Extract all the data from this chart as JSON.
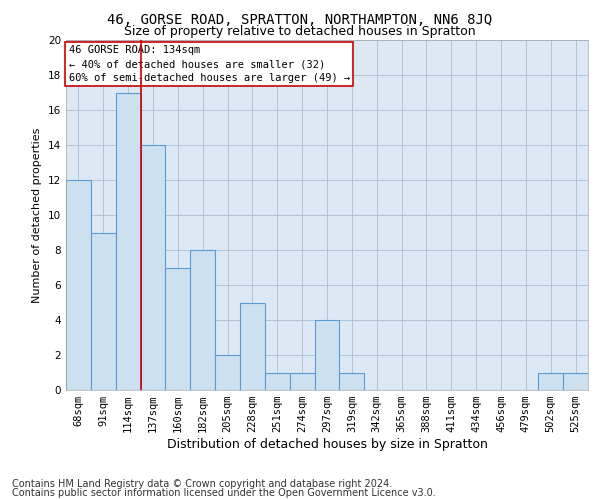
{
  "title1": "46, GORSE ROAD, SPRATTON, NORTHAMPTON, NN6 8JQ",
  "title2": "Size of property relative to detached houses in Spratton",
  "xlabel": "Distribution of detached houses by size in Spratton",
  "ylabel": "Number of detached properties",
  "footer1": "Contains HM Land Registry data © Crown copyright and database right 2024.",
  "footer2": "Contains public sector information licensed under the Open Government Licence v3.0.",
  "annotation_line1": "46 GORSE ROAD: 134sqm",
  "annotation_line2": "← 40% of detached houses are smaller (32)",
  "annotation_line3": "60% of semi-detached houses are larger (49) →",
  "categories": [
    "68sqm",
    "91sqm",
    "114sqm",
    "137sqm",
    "160sqm",
    "182sqm",
    "205sqm",
    "228sqm",
    "251sqm",
    "274sqm",
    "297sqm",
    "319sqm",
    "342sqm",
    "365sqm",
    "388sqm",
    "411sqm",
    "434sqm",
    "456sqm",
    "479sqm",
    "502sqm",
    "525sqm"
  ],
  "values": [
    12,
    9,
    17,
    14,
    7,
    8,
    2,
    5,
    1,
    1,
    4,
    1,
    0,
    0,
    0,
    0,
    0,
    0,
    0,
    1,
    1
  ],
  "bar_color": "#cce0f0",
  "bar_edge_color": "#5b9bd5",
  "grid_color": "#b0c4d8",
  "background_color": "#dce9f5",
  "vline_x_index": 2.5,
  "vline_color": "#cc0000",
  "ylim": [
    0,
    20
  ],
  "yticks": [
    0,
    2,
    4,
    6,
    8,
    10,
    12,
    14,
    16,
    18,
    20
  ],
  "annotation_box_color": "#ffffff",
  "annotation_box_edge": "#cc0000",
  "title1_fontsize": 10,
  "title2_fontsize": 9,
  "xlabel_fontsize": 9,
  "ylabel_fontsize": 8,
  "tick_fontsize": 7.5,
  "annotation_fontsize": 7.5,
  "footer_fontsize": 7
}
